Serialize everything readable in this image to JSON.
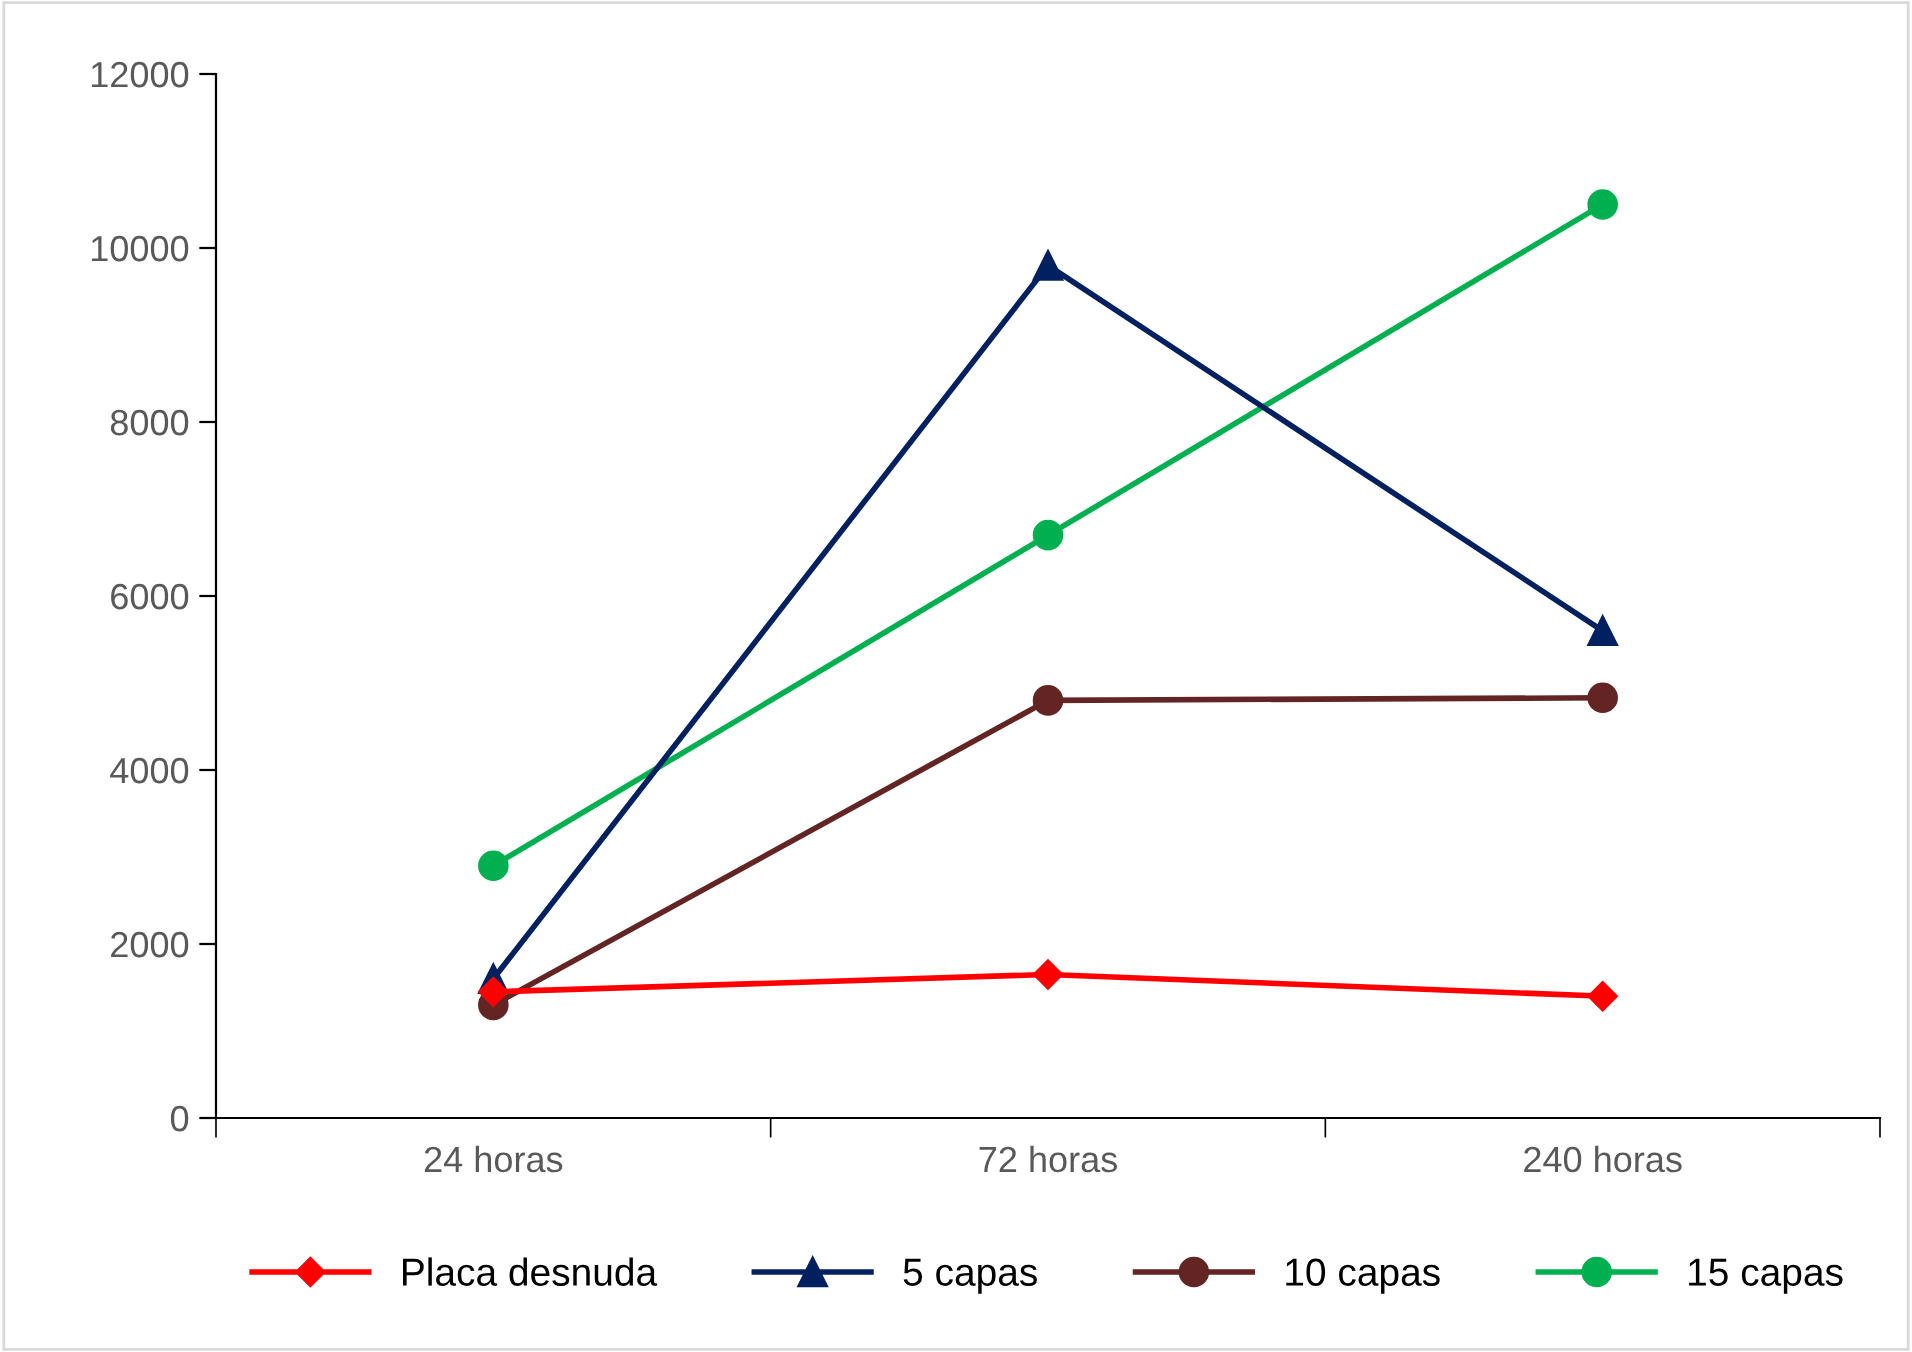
{
  "chart_data": {
    "type": "line",
    "categories": [
      "24 horas",
      "72 horas",
      "240 horas"
    ],
    "series": [
      {
        "name": "Placa desnuda",
        "color": "#ff0000",
        "marker": "diamond",
        "values": [
          1450,
          1650,
          1400
        ]
      },
      {
        "name": "5 capas",
        "color": "#002060",
        "marker": "triangle",
        "values": [
          1600,
          9800,
          5600
        ]
      },
      {
        "name": "10 capas",
        "color": "#632523",
        "marker": "circle",
        "values": [
          1300,
          4800,
          4830
        ]
      },
      {
        "name": "15 capas",
        "color": "#00b050",
        "marker": "circle",
        "values": [
          2900,
          6700,
          10500
        ]
      }
    ],
    "ylim": [
      0,
      12000
    ],
    "yticks": [
      0,
      2000,
      4000,
      6000,
      8000,
      10000,
      12000
    ],
    "grid": false,
    "legend": "bottom",
    "line_style": "solid"
  }
}
